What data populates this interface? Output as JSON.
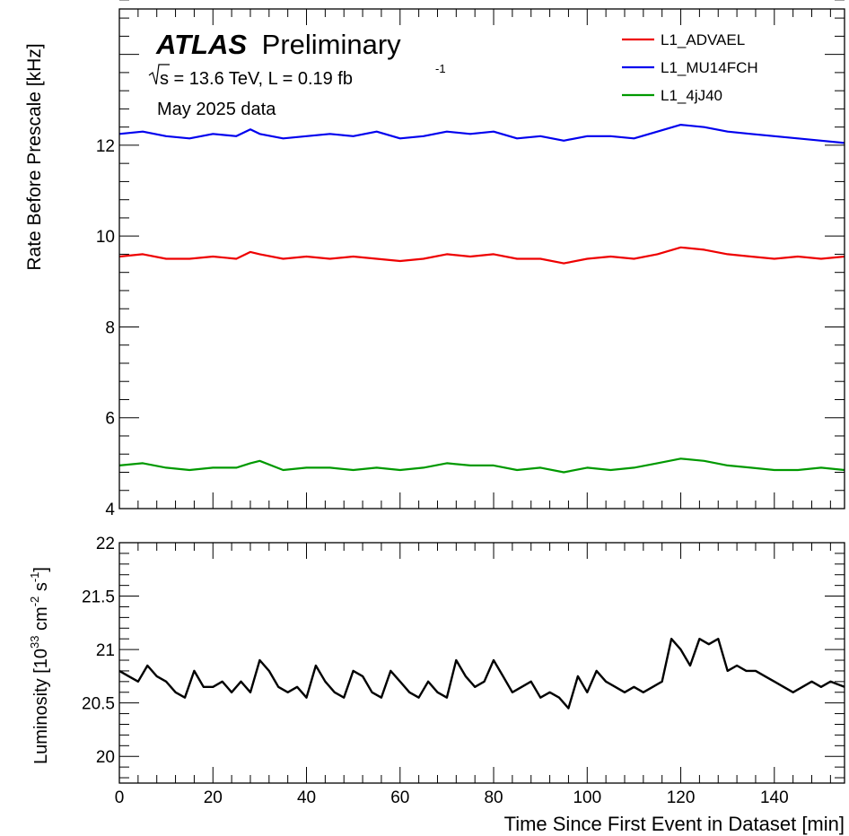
{
  "header": {
    "experiment": "ATLAS",
    "status": "Preliminary",
    "energy_prefix": "s",
    "energy_text": " = 13.6 TeV, L = 0.19 fb",
    "lumi_exponent": "-1",
    "period": "May 2025 data"
  },
  "chart_data": [
    {
      "type": "line",
      "ylabel": "Rate Before Prescale [kHz]",
      "xlim": [
        0,
        155
      ],
      "ylim": [
        4,
        15
      ],
      "yticks": [
        "4",
        "6",
        "8",
        "10",
        "12"
      ],
      "legend_position": "top-right",
      "series": [
        {
          "name": "L1_ADVAEL",
          "color": "#ee0000",
          "x": [
            0,
            5,
            10,
            15,
            20,
            25,
            28,
            30,
            35,
            40,
            45,
            50,
            55,
            60,
            65,
            70,
            75,
            80,
            85,
            90,
            95,
            100,
            105,
            110,
            115,
            120,
            125,
            130,
            135,
            140,
            145,
            150,
            155
          ],
          "y": [
            9.55,
            9.6,
            9.5,
            9.5,
            9.55,
            9.5,
            9.65,
            9.6,
            9.5,
            9.55,
            9.5,
            9.55,
            9.5,
            9.45,
            9.5,
            9.6,
            9.55,
            9.6,
            9.5,
            9.5,
            9.4,
            9.5,
            9.55,
            9.5,
            9.6,
            9.75,
            9.7,
            9.6,
            9.55,
            9.5,
            9.55,
            9.5,
            9.55
          ]
        },
        {
          "name": "L1_MU14FCH",
          "color": "#0000ee",
          "x": [
            0,
            5,
            10,
            15,
            20,
            25,
            28,
            30,
            35,
            40,
            45,
            50,
            55,
            60,
            65,
            70,
            75,
            80,
            85,
            90,
            95,
            100,
            105,
            110,
            115,
            120,
            125,
            130,
            135,
            140,
            145,
            150,
            155
          ],
          "y": [
            12.25,
            12.3,
            12.2,
            12.15,
            12.25,
            12.2,
            12.35,
            12.25,
            12.15,
            12.2,
            12.25,
            12.2,
            12.3,
            12.15,
            12.2,
            12.3,
            12.25,
            12.3,
            12.15,
            12.2,
            12.1,
            12.2,
            12.2,
            12.15,
            12.3,
            12.45,
            12.4,
            12.3,
            12.25,
            12.2,
            12.15,
            12.1,
            12.05
          ]
        },
        {
          "name": "L1_4jJ40",
          "color": "#009900",
          "x": [
            0,
            5,
            10,
            15,
            20,
            25,
            28,
            30,
            35,
            40,
            45,
            50,
            55,
            60,
            65,
            70,
            75,
            80,
            85,
            90,
            95,
            100,
            105,
            110,
            115,
            120,
            125,
            130,
            135,
            140,
            145,
            150,
            155
          ],
          "y": [
            4.95,
            5.0,
            4.9,
            4.85,
            4.9,
            4.9,
            5.0,
            5.05,
            4.85,
            4.9,
            4.9,
            4.85,
            4.9,
            4.85,
            4.9,
            5.0,
            4.95,
            4.95,
            4.85,
            4.9,
            4.8,
            4.9,
            4.85,
            4.9,
            5.0,
            5.1,
            5.05,
            4.95,
            4.9,
            4.85,
            4.85,
            4.9,
            4.85
          ]
        }
      ]
    },
    {
      "type": "line",
      "xlabel": "Time Since First Event in Dataset [min]",
      "ylabel_prefix": "Luminosity [10",
      "ylabel_exp1": "33",
      "ylabel_mid": " cm",
      "ylabel_exp2": "-2",
      "ylabel_mid2": " s",
      "ylabel_exp3": "-1",
      "ylabel_suffix": "]",
      "xlim": [
        0,
        155
      ],
      "ylim": [
        19.75,
        22
      ],
      "xticks": [
        "0",
        "20",
        "40",
        "60",
        "80",
        "100",
        "120",
        "140"
      ],
      "yticks": [
        "20",
        "20.5",
        "21",
        "21.5",
        "22"
      ],
      "series": [
        {
          "name": "",
          "color": "#000000",
          "x": [
            0,
            2,
            4,
            6,
            8,
            10,
            12,
            14,
            16,
            18,
            20,
            22,
            24,
            26,
            28,
            30,
            32,
            34,
            36,
            38,
            40,
            42,
            44,
            46,
            48,
            50,
            52,
            54,
            56,
            58,
            60,
            62,
            64,
            66,
            68,
            70,
            72,
            74,
            76,
            78,
            80,
            82,
            84,
            86,
            88,
            90,
            92,
            94,
            96,
            98,
            100,
            102,
            104,
            106,
            108,
            110,
            112,
            114,
            116,
            118,
            120,
            122,
            124,
            126,
            128,
            130,
            132,
            134,
            136,
            138,
            140,
            142,
            144,
            146,
            148,
            150,
            152,
            155
          ],
          "y": [
            20.8,
            20.75,
            20.7,
            20.85,
            20.75,
            20.7,
            20.6,
            20.55,
            20.8,
            20.65,
            20.65,
            20.7,
            20.6,
            20.7,
            20.6,
            20.9,
            20.8,
            20.65,
            20.6,
            20.65,
            20.55,
            20.85,
            20.7,
            20.6,
            20.55,
            20.8,
            20.75,
            20.6,
            20.55,
            20.8,
            20.7,
            20.6,
            20.55,
            20.7,
            20.6,
            20.55,
            20.9,
            20.75,
            20.65,
            20.7,
            20.9,
            20.75,
            20.6,
            20.65,
            20.7,
            20.55,
            20.6,
            20.55,
            20.45,
            20.75,
            20.6,
            20.8,
            20.7,
            20.65,
            20.6,
            20.65,
            20.6,
            20.65,
            20.7,
            21.1,
            21.0,
            20.85,
            21.1,
            21.05,
            21.1,
            20.8,
            20.85,
            20.8,
            20.8,
            20.75,
            20.7,
            20.65,
            20.6,
            20.65,
            20.7,
            20.65,
            20.7,
            20.65
          ]
        }
      ]
    }
  ]
}
